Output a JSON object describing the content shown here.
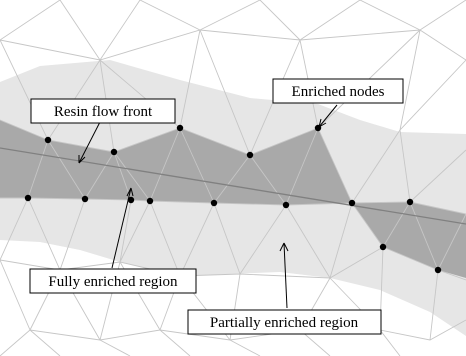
{
  "figure": {
    "labels": {
      "resin_flow_front": "Resin flow front",
      "enriched_nodes": "Enriched nodes",
      "fully_enriched_region": "Fully enriched region",
      "partially_enriched_region": "Partially enriched region"
    },
    "colors": {
      "background": "#ffffff",
      "mesh_edge": "#c6c6c6",
      "partially_enriched_fill": "#e6e6e6",
      "fully_enriched_fill": "#a9a9a9",
      "flow_front_line": "#808080",
      "enriched_node": "#000000",
      "callout_border": "#000000"
    }
  }
}
